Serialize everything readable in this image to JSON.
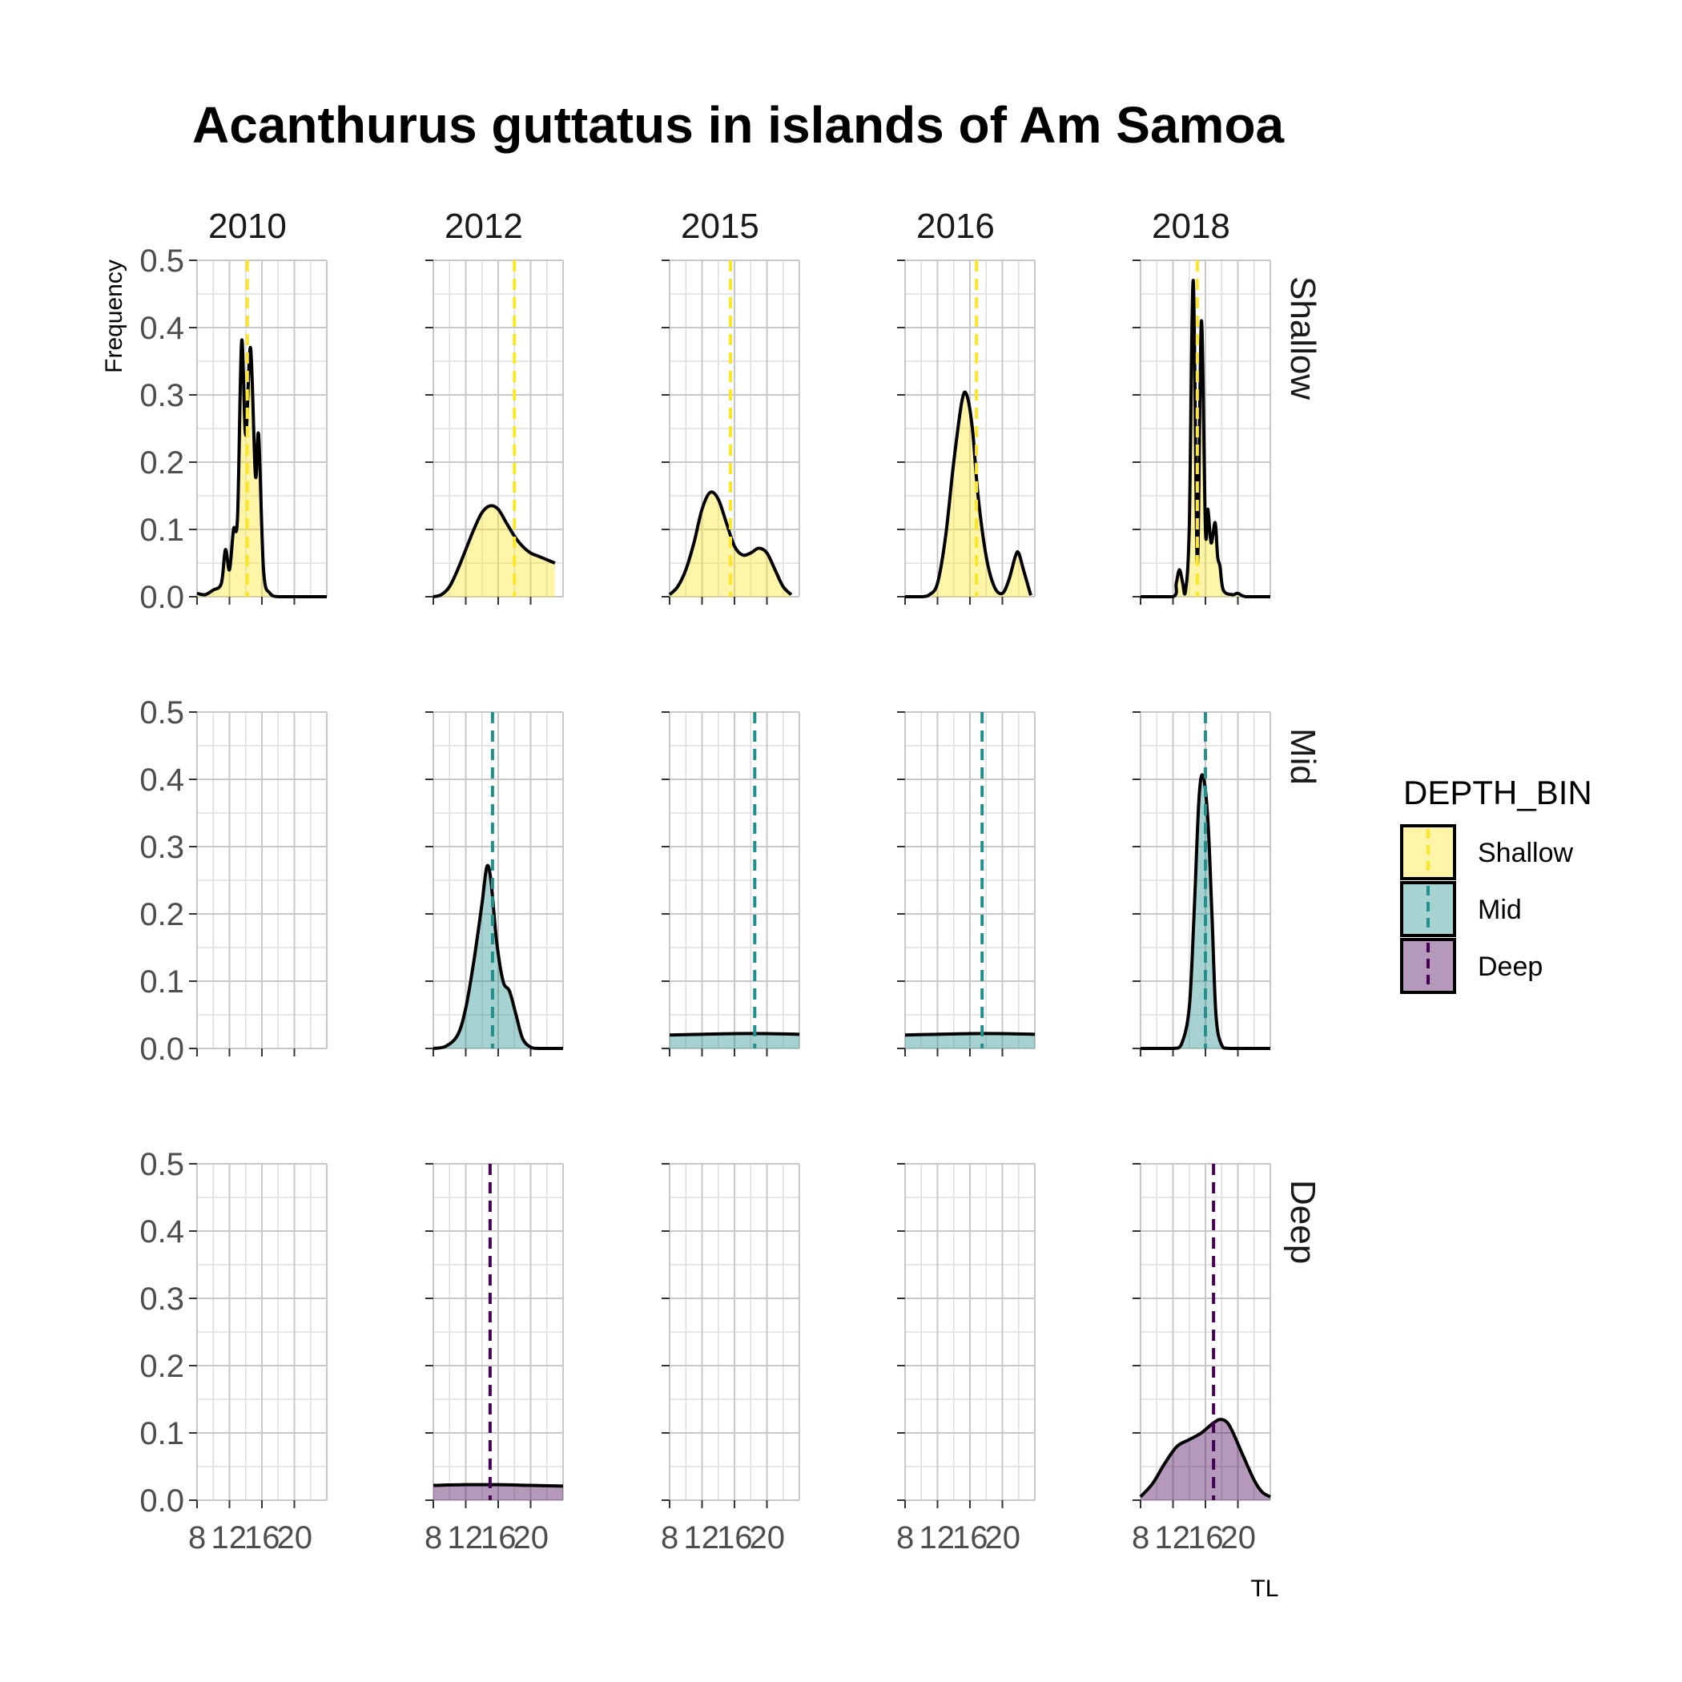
{
  "chart_data": {
    "type": "area",
    "title": "Acanthurus guttatus in islands of Am Samoa",
    "xlabel": "TL",
    "ylabel": "Frequency",
    "ylim": [
      0,
      0.5
    ],
    "xlim": [
      8,
      24
    ],
    "x_ticks": [
      8,
      12,
      16,
      20
    ],
    "x_tick_labels": [
      "8",
      "12",
      "16",
      "20"
    ],
    "y_ticks": [
      0.0,
      0.1,
      0.2,
      0.3,
      0.4,
      0.5
    ],
    "y_tick_labels": [
      "0.0",
      "0.1",
      "0.2",
      "0.3",
      "0.4",
      "0.5"
    ],
    "grid": true,
    "legend": {
      "title": "DEPTH_BIN",
      "position": "right",
      "entries": [
        "Shallow",
        "Mid",
        "Deep"
      ]
    },
    "columns": [
      "2010",
      "2012",
      "2015",
      "2016",
      "2018"
    ],
    "rows": [
      "Shallow",
      "Mid",
      "Deep"
    ],
    "colors": {
      "Shallow": "#FDE725",
      "Mid": "#21908C",
      "Deep": "#440154"
    },
    "series": [
      {
        "year": "2010",
        "depth": "Shallow",
        "mean": 14.2,
        "points": [
          [
            8,
            0.005
          ],
          [
            9,
            0.003
          ],
          [
            10,
            0.01
          ],
          [
            11,
            0.02
          ],
          [
            11.5,
            0.07
          ],
          [
            12,
            0.04
          ],
          [
            12.5,
            0.1
          ],
          [
            13,
            0.12
          ],
          [
            13.5,
            0.38
          ],
          [
            14,
            0.24
          ],
          [
            14.6,
            0.37
          ],
          [
            15.2,
            0.18
          ],
          [
            15.6,
            0.24
          ],
          [
            16.2,
            0.04
          ],
          [
            17,
            0.005
          ],
          [
            18,
            0
          ],
          [
            20,
            0
          ],
          [
            24,
            0
          ]
        ]
      },
      {
        "year": "2012",
        "depth": "Shallow",
        "mean": 18.0,
        "points": [
          [
            8,
            0
          ],
          [
            9,
            0.003
          ],
          [
            10,
            0.015
          ],
          [
            11,
            0.04
          ],
          [
            12,
            0.07
          ],
          [
            13,
            0.1
          ],
          [
            14,
            0.125
          ],
          [
            15,
            0.135
          ],
          [
            16,
            0.13
          ],
          [
            17,
            0.11
          ],
          [
            18,
            0.09
          ],
          [
            19,
            0.075
          ],
          [
            20,
            0.065
          ],
          [
            21,
            0.06
          ],
          [
            22,
            0.055
          ],
          [
            23,
            0.05
          ]
        ]
      },
      {
        "year": "2015",
        "depth": "Shallow",
        "mean": 15.5,
        "points": [
          [
            8,
            0.003
          ],
          [
            9,
            0.015
          ],
          [
            10,
            0.04
          ],
          [
            11,
            0.08
          ],
          [
            12,
            0.13
          ],
          [
            13,
            0.155
          ],
          [
            14,
            0.145
          ],
          [
            15,
            0.11
          ],
          [
            16,
            0.075
          ],
          [
            17,
            0.062
          ],
          [
            18,
            0.065
          ],
          [
            19,
            0.072
          ],
          [
            20,
            0.065
          ],
          [
            21,
            0.04
          ],
          [
            22,
            0.015
          ],
          [
            23,
            0.003
          ]
        ]
      },
      {
        "year": "2016",
        "depth": "Shallow",
        "mean": 16.8,
        "points": [
          [
            8,
            0
          ],
          [
            10,
            0
          ],
          [
            11,
            0.003
          ],
          [
            12,
            0.02
          ],
          [
            13,
            0.09
          ],
          [
            14,
            0.2
          ],
          [
            15,
            0.29
          ],
          [
            15.6,
            0.3
          ],
          [
            16.3,
            0.25
          ],
          [
            17,
            0.15
          ],
          [
            18,
            0.06
          ],
          [
            19,
            0.015
          ],
          [
            20,
            0.005
          ],
          [
            20.8,
            0.025
          ],
          [
            21.6,
            0.06
          ],
          [
            22,
            0.065
          ],
          [
            22.6,
            0.04
          ],
          [
            23.5,
            0.002
          ]
        ]
      },
      {
        "year": "2018",
        "depth": "Shallow",
        "mean": 15.0,
        "points": [
          [
            8,
            0
          ],
          [
            12,
            0
          ],
          [
            12.4,
            0.02
          ],
          [
            12.8,
            0.04
          ],
          [
            13.2,
            0.02
          ],
          [
            13.5,
            0.005
          ],
          [
            14,
            0.1
          ],
          [
            14.5,
            0.47
          ],
          [
            15,
            0.05
          ],
          [
            15.5,
            0.41
          ],
          [
            16,
            0.1
          ],
          [
            16.3,
            0.13
          ],
          [
            16.7,
            0.08
          ],
          [
            17.2,
            0.11
          ],
          [
            17.5,
            0.06
          ],
          [
            17.8,
            0.045
          ],
          [
            18.2,
            0.01
          ],
          [
            19.3,
            0.003
          ],
          [
            20,
            0.005
          ],
          [
            21,
            0
          ],
          [
            24,
            0
          ]
        ]
      },
      {
        "year": "2012",
        "depth": "Mid",
        "mean": 15.3,
        "points": [
          [
            8,
            0
          ],
          [
            9.5,
            0.003
          ],
          [
            11,
            0.02
          ],
          [
            12,
            0.06
          ],
          [
            13,
            0.13
          ],
          [
            14,
            0.215
          ],
          [
            14.6,
            0.27
          ],
          [
            15.1,
            0.25
          ],
          [
            15.8,
            0.16
          ],
          [
            16.6,
            0.1
          ],
          [
            17.4,
            0.085
          ],
          [
            18.2,
            0.05
          ],
          [
            19,
            0.015
          ],
          [
            20,
            0.002
          ],
          [
            21,
            0
          ],
          [
            24,
            0
          ]
        ]
      },
      {
        "year": "2015",
        "depth": "Mid",
        "mean": 18.5,
        "points": [
          [
            8,
            0.02
          ],
          [
            12,
            0.021
          ],
          [
            16,
            0.022
          ],
          [
            20,
            0.022
          ],
          [
            24,
            0.021
          ]
        ]
      },
      {
        "year": "2016",
        "depth": "Mid",
        "mean": 17.5,
        "points": [
          [
            8,
            0.02
          ],
          [
            12,
            0.021
          ],
          [
            16,
            0.022
          ],
          [
            20,
            0.022
          ],
          [
            24,
            0.021
          ]
        ]
      },
      {
        "year": "2018",
        "depth": "Mid",
        "mean": 16.0,
        "points": [
          [
            8,
            0
          ],
          [
            12,
            0
          ],
          [
            13,
            0.005
          ],
          [
            14,
            0.06
          ],
          [
            14.6,
            0.2
          ],
          [
            15.2,
            0.37
          ],
          [
            15.7,
            0.405
          ],
          [
            16.3,
            0.34
          ],
          [
            16.8,
            0.2
          ],
          [
            17.3,
            0.05
          ],
          [
            18,
            0.005
          ],
          [
            19,
            0
          ],
          [
            24,
            0
          ]
        ]
      },
      {
        "year": "2012",
        "depth": "Deep",
        "mean": 15.0,
        "points": [
          [
            8,
            0.022
          ],
          [
            12,
            0.023
          ],
          [
            16,
            0.023
          ],
          [
            20,
            0.022
          ],
          [
            24,
            0.021
          ]
        ]
      },
      {
        "year": "2018",
        "depth": "Deep",
        "mean": 17.0,
        "points": [
          [
            8,
            0.005
          ],
          [
            9.5,
            0.025
          ],
          [
            11,
            0.055
          ],
          [
            12.5,
            0.08
          ],
          [
            14,
            0.09
          ],
          [
            15.5,
            0.1
          ],
          [
            17,
            0.115
          ],
          [
            18,
            0.12
          ],
          [
            19,
            0.11
          ],
          [
            20.5,
            0.07
          ],
          [
            22,
            0.03
          ],
          [
            23,
            0.012
          ],
          [
            24,
            0.005
          ]
        ]
      }
    ]
  }
}
